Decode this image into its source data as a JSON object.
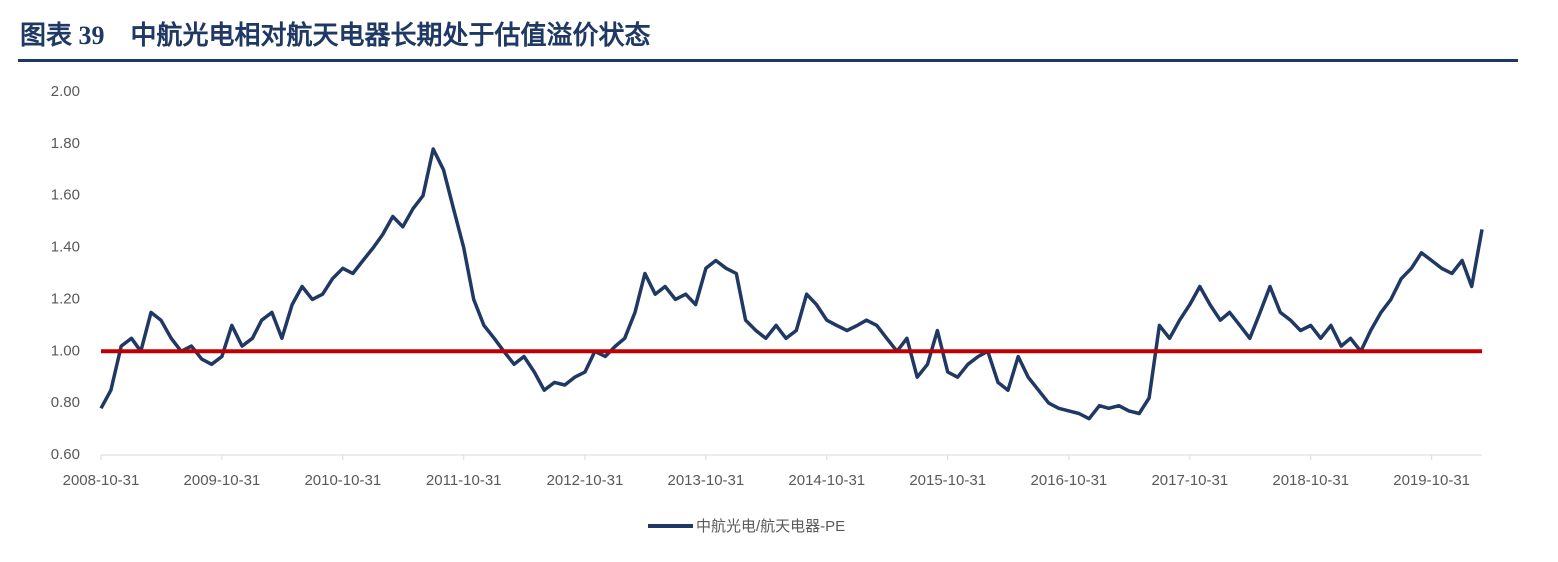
{
  "chart_data": {
    "type": "line",
    "title": "图表 39　中航光电相对航天电器长期处于估值溢价状态",
    "x": [
      "2008-10-31",
      "2008-11-30",
      "2008-12-31",
      "2009-01-31",
      "2009-02-28",
      "2009-03-31",
      "2009-04-30",
      "2009-05-31",
      "2009-06-30",
      "2009-07-31",
      "2009-08-31",
      "2009-09-30",
      "2009-10-31",
      "2009-11-30",
      "2009-12-31",
      "2010-01-31",
      "2010-02-28",
      "2010-03-31",
      "2010-04-30",
      "2010-05-31",
      "2010-06-30",
      "2010-07-31",
      "2010-08-31",
      "2010-09-30",
      "2010-10-31",
      "2010-11-30",
      "2010-12-31",
      "2011-01-31",
      "2011-02-28",
      "2011-03-31",
      "2011-04-30",
      "2011-05-31",
      "2011-06-30",
      "2011-07-31",
      "2011-08-31",
      "2011-09-30",
      "2011-10-31",
      "2011-11-30",
      "2011-12-31",
      "2012-01-31",
      "2012-02-29",
      "2012-03-31",
      "2012-04-30",
      "2012-05-31",
      "2012-06-30",
      "2012-07-31",
      "2012-08-31",
      "2012-09-30",
      "2012-10-31",
      "2012-11-30",
      "2012-12-31",
      "2013-01-31",
      "2013-02-28",
      "2013-03-31",
      "2013-04-30",
      "2013-05-31",
      "2013-06-30",
      "2013-07-31",
      "2013-08-31",
      "2013-09-30",
      "2013-10-31",
      "2013-11-30",
      "2013-12-31",
      "2014-01-31",
      "2014-02-28",
      "2014-03-31",
      "2014-04-30",
      "2014-05-31",
      "2014-06-30",
      "2014-07-31",
      "2014-08-31",
      "2014-09-30",
      "2014-10-31",
      "2014-11-30",
      "2014-12-31",
      "2015-01-31",
      "2015-02-28",
      "2015-03-31",
      "2015-04-30",
      "2015-05-31",
      "2015-06-30",
      "2015-07-31",
      "2015-08-31",
      "2015-09-30",
      "2015-10-31",
      "2015-11-30",
      "2015-12-31",
      "2016-01-31",
      "2016-02-29",
      "2016-03-31",
      "2016-04-30",
      "2016-05-31",
      "2016-06-30",
      "2016-07-31",
      "2016-08-31",
      "2016-09-30",
      "2016-10-31",
      "2016-11-30",
      "2016-12-31",
      "2017-01-31",
      "2017-02-28",
      "2017-03-31",
      "2017-04-30",
      "2017-05-31",
      "2017-06-30",
      "2017-07-31",
      "2017-08-31",
      "2017-09-30",
      "2017-10-31",
      "2017-11-30",
      "2017-12-31",
      "2018-01-31",
      "2018-02-28",
      "2018-03-31",
      "2018-04-30",
      "2018-05-31",
      "2018-06-30",
      "2018-07-31",
      "2018-08-31",
      "2018-09-30",
      "2018-10-31",
      "2018-11-30",
      "2018-12-31",
      "2019-01-31",
      "2019-02-28",
      "2019-03-31",
      "2019-04-30",
      "2019-05-31",
      "2019-06-30",
      "2019-07-31",
      "2019-08-31",
      "2019-09-30",
      "2019-10-31",
      "2019-11-30",
      "2019-12-31",
      "2020-01-31",
      "2020-02-29",
      "2020-03-31"
    ],
    "series": [
      {
        "name": "中航光电/航天电器-PE",
        "color": "#1f3864",
        "values": [
          0.78,
          0.85,
          1.02,
          1.05,
          1.0,
          1.15,
          1.12,
          1.05,
          1.0,
          1.02,
          0.97,
          0.95,
          0.98,
          1.1,
          1.02,
          1.05,
          1.12,
          1.15,
          1.05,
          1.18,
          1.25,
          1.2,
          1.22,
          1.28,
          1.32,
          1.3,
          1.35,
          1.4,
          1.45,
          1.52,
          1.48,
          1.55,
          1.6,
          1.78,
          1.7,
          1.55,
          1.4,
          1.2,
          1.1,
          1.05,
          1.0,
          0.95,
          0.98,
          0.92,
          0.85,
          0.88,
          0.87,
          0.9,
          0.92,
          1.0,
          0.98,
          1.02,
          1.05,
          1.15,
          1.3,
          1.22,
          1.25,
          1.2,
          1.22,
          1.18,
          1.32,
          1.35,
          1.32,
          1.3,
          1.12,
          1.08,
          1.05,
          1.1,
          1.05,
          1.08,
          1.22,
          1.18,
          1.12,
          1.1,
          1.08,
          1.1,
          1.12,
          1.1,
          1.05,
          1.0,
          1.05,
          0.9,
          0.95,
          1.08,
          0.92,
          0.9,
          0.95,
          0.98,
          1.0,
          0.88,
          0.85,
          0.98,
          0.9,
          0.85,
          0.8,
          0.78,
          0.77,
          0.76,
          0.74,
          0.79,
          0.78,
          0.79,
          0.77,
          0.76,
          0.82,
          1.1,
          1.05,
          1.12,
          1.18,
          1.25,
          1.18,
          1.12,
          1.15,
          1.1,
          1.05,
          1.15,
          1.25,
          1.15,
          1.12,
          1.08,
          1.1,
          1.05,
          1.1,
          1.02,
          1.05,
          1.0,
          1.08,
          1.15,
          1.2,
          1.28,
          1.32,
          1.38,
          1.35,
          1.32,
          1.3,
          1.35,
          1.25,
          1.47
        ]
      }
    ],
    "reference_line": {
      "value": 1,
      "color": "#c00000"
    },
    "xlim": [
      "2008-10-31",
      "2020-03-31"
    ],
    "xticks": [
      "2008-10-31",
      "2009-10-31",
      "2010-10-31",
      "2011-10-31",
      "2012-10-31",
      "2013-10-31",
      "2014-10-31",
      "2015-10-31",
      "2016-10-31",
      "2017-10-31",
      "2018-10-31",
      "2019-10-31"
    ],
    "ylim": [
      0.6,
      2.0
    ],
    "yticks": [
      {
        "value": 0.6,
        "label": "0.60"
      },
      {
        "value": 0.8,
        "label": "0.80"
      },
      {
        "value": 1,
        "label": "1.00"
      },
      {
        "value": 1.2,
        "label": "1.20"
      },
      {
        "value": 1.4,
        "label": "1.40"
      },
      {
        "value": 1.6,
        "label": "1.60"
      },
      {
        "value": 1.8,
        "label": "1.80"
      },
      {
        "value": 2,
        "label": "2.00"
      }
    ],
    "grid": false
  }
}
